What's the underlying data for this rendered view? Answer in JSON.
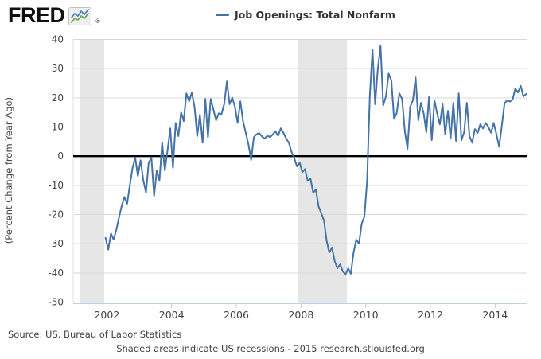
{
  "logo": {
    "text": "FRED",
    "reg_mark": "®",
    "chart_icon": "mini-line-chart"
  },
  "legend": {
    "swatch_color": "#4572a7",
    "label": "Job Openings: Total Nonfarm"
  },
  "y_axis": {
    "title": "(Percent Change from Year Ago)"
  },
  "footer": {
    "source": "Source: US. Bureau of Labor Statistics",
    "note": "Shaded areas indicate US recessions - 2015 research.stlouisfed.org"
  },
  "chart_data": {
    "type": "line",
    "title": "",
    "xlabel": "",
    "ylabel": "(Percent Change from Year Ago)",
    "legend": [
      "Job Openings: Total Nonfarm"
    ],
    "legend_position": "top",
    "grid": true,
    "ylim": [
      -50,
      40
    ],
    "yticks": [
      40,
      30,
      20,
      10,
      0,
      -10,
      -20,
      -30,
      -40,
      -50
    ],
    "xlim": [
      2000.958,
      2015.0
    ],
    "xticks": [
      2002,
      2004,
      2006,
      2008,
      2010,
      2012,
      2014
    ],
    "zero_line": true,
    "recession_bands": [
      [
        2001.167,
        2001.917
      ],
      [
        2007.917,
        2009.417
      ]
    ],
    "series": [
      {
        "name": "Job Openings: Total Nonfarm",
        "color": "#4572a7",
        "frequency": "monthly",
        "first_point": "2001-12",
        "start_decimal_year": 2001.9583,
        "step_years": 0.0833333,
        "values": [
          -28.0,
          -32.0,
          -26.5,
          -28.6,
          -25.3,
          -21.0,
          -17.0,
          -14.0,
          -16.3,
          -10.0,
          -4.0,
          -0.5,
          -6.8,
          -1.4,
          -8.2,
          -12.5,
          -2.2,
          -0.5,
          -13.6,
          -4.9,
          -8.4,
          4.6,
          -4.9,
          2.0,
          9.5,
          -4.0,
          11.4,
          6.9,
          15.0,
          12.0,
          21.5,
          18.8,
          21.8,
          16.9,
          6.9,
          14.2,
          4.6,
          19.6,
          6.5,
          19.6,
          16.0,
          12.3,
          14.7,
          14.4,
          17.8,
          25.6,
          17.8,
          20.1,
          16.9,
          11.4,
          18.8,
          12.0,
          8.0,
          4.0,
          -1.3,
          6.5,
          7.5,
          7.9,
          6.8,
          6.0,
          7.0,
          6.5,
          7.4,
          8.5,
          7.0,
          9.5,
          8.0,
          6.0,
          4.6,
          1.4,
          -0.8,
          -3.5,
          -2.2,
          -5.5,
          -4.4,
          -8.5,
          -7.6,
          -12.5,
          -11.5,
          -17.2,
          -19.5,
          -22.0,
          -28.9,
          -33.0,
          -31.3,
          -36.0,
          -38.4,
          -37.1,
          -39.5,
          -40.5,
          -38.4,
          -40.3,
          -33.0,
          -28.6,
          -30.0,
          -23.2,
          -20.7,
          -8.5,
          20.4,
          36.5,
          17.8,
          30.0,
          37.8,
          17.4,
          20.5,
          28.3,
          25.9,
          12.8,
          14.7,
          21.5,
          19.6,
          8.7,
          2.5,
          16.9,
          19.1,
          27.0,
          12.3,
          18.3,
          14.7,
          8.2,
          20.5,
          5.5,
          19.1,
          14.5,
          10.9,
          17.8,
          7.4,
          15.5,
          6.0,
          18.3,
          5.2,
          21.5,
          5.5,
          8.2,
          18.3,
          6.9,
          4.6,
          9.3,
          7.9,
          10.9,
          9.5,
          11.4,
          10.0,
          8.0,
          11.4,
          7.5,
          3.2,
          10.5,
          18.2,
          19.1,
          18.7,
          19.5,
          23.2,
          21.8,
          24.1,
          20.5,
          21.3
        ]
      }
    ],
    "colors": {
      "series_line": "#4572a7",
      "recession": "#e6e6e6",
      "grid": "#d9d9d9",
      "axis_line": "#c0d0e0",
      "tick_label": "#424242",
      "zero_line": "#000000"
    }
  }
}
